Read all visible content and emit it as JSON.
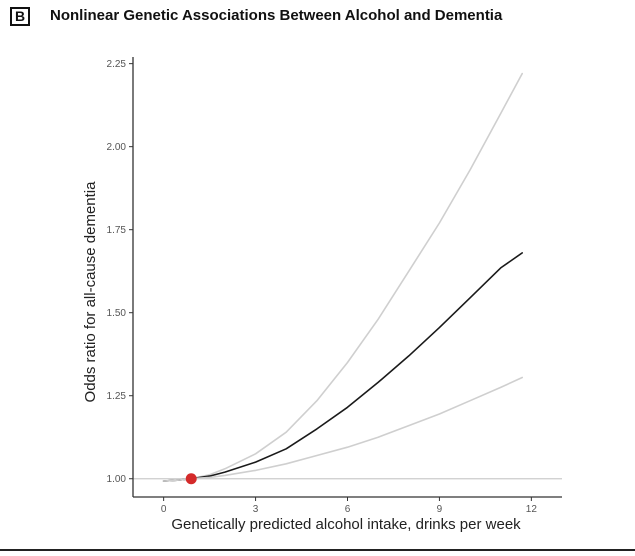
{
  "panel_label": "B",
  "chart_data": {
    "type": "line",
    "title": "Nonlinear Genetic Associations Between Alcohol and Dementia",
    "xlabel": "Genetically predicted alcohol intake, drinks per week",
    "ylabel": "Odds ratio for all-cause dementia",
    "xlim": [
      -1,
      13
    ],
    "ylim": [
      0.945,
      2.27
    ],
    "x_ticks": [
      0,
      3,
      6,
      9,
      12
    ],
    "x_tick_labels": [
      "0",
      "3",
      "6",
      "9",
      "12"
    ],
    "y_ticks": [
      1.0,
      1.25,
      1.5,
      1.75,
      2.0,
      2.25
    ],
    "y_tick_labels": [
      "1.00",
      "1.25",
      "1.50",
      "1.75",
      "2.00",
      "2.25"
    ],
    "reference_line_y": 1.0,
    "reference_point": {
      "x": 0.9,
      "y": 1.0
    },
    "grid": false,
    "colors": {
      "estimate": "#1a1a1a",
      "ci": "#cfcfcf",
      "reference_line": "#cccccc",
      "reference_point": "#d42a2a",
      "axis": "#333333"
    },
    "series": [
      {
        "role": "upper-ci",
        "x": [
          0,
          0.5,
          0.9,
          1.5,
          2,
          3,
          4,
          5,
          6,
          7,
          8,
          9,
          10,
          11,
          11.7
        ],
        "y": [
          0.993,
          0.996,
          1.0,
          1.012,
          1.03,
          1.075,
          1.14,
          1.235,
          1.35,
          1.48,
          1.625,
          1.77,
          1.93,
          2.1,
          2.22
        ]
      },
      {
        "role": "estimate",
        "x": [
          0,
          0.5,
          0.9,
          1.5,
          2,
          3,
          4,
          5,
          6,
          7,
          8,
          9,
          10,
          11,
          11.7
        ],
        "y": [
          0.993,
          0.996,
          1.0,
          1.008,
          1.02,
          1.05,
          1.09,
          1.15,
          1.215,
          1.29,
          1.37,
          1.455,
          1.545,
          1.635,
          1.68
        ]
      },
      {
        "role": "lower-ci",
        "x": [
          0,
          0.5,
          0.9,
          1.5,
          2,
          3,
          4,
          5,
          6,
          7,
          8,
          9,
          10,
          11,
          11.7
        ],
        "y": [
          0.993,
          0.996,
          1.0,
          1.004,
          1.01,
          1.025,
          1.045,
          1.07,
          1.095,
          1.125,
          1.16,
          1.195,
          1.235,
          1.275,
          1.305
        ]
      }
    ]
  }
}
